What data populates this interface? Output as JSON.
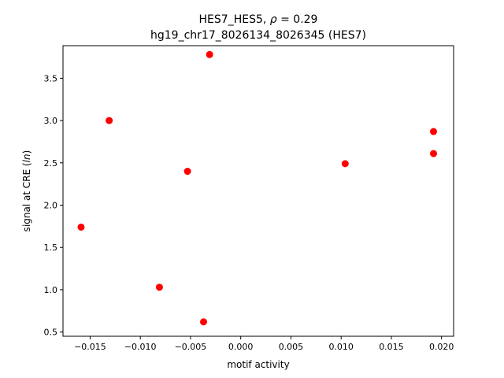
{
  "chart_data": {
    "type": "scatter",
    "title_line1_prefix": "HES7_HES5, ",
    "title_rho_symbol": "ρ",
    "title_rho_value": " = 0.29",
    "title_line2": "hg19_chr17_8026134_8026345 (HES7)",
    "xlabel": "motif activity",
    "ylabel_prefix": "signal at CRE (",
    "ylabel_italic": "ln",
    "ylabel_suffix": ")",
    "xlim": [
      -0.0177,
      0.0212
    ],
    "ylim": [
      0.45,
      3.885
    ],
    "x_ticks": [
      -0.015,
      -0.01,
      -0.005,
      0.0,
      0.005,
      0.01,
      0.015,
      0.02
    ],
    "x_tick_labels": [
      "−0.015",
      "−0.010",
      "−0.005",
      "0.000",
      "0.005",
      "0.010",
      "0.015",
      "0.020"
    ],
    "y_ticks": [
      0.5,
      1.0,
      1.5,
      2.0,
      2.5,
      3.0,
      3.5
    ],
    "y_tick_labels": [
      "0.5",
      "1.0",
      "1.5",
      "2.0",
      "2.5",
      "3.0",
      "3.5"
    ],
    "grid": false,
    "marker_color": "#ff0000",
    "points": [
      {
        "x": -0.0159,
        "y": 1.74
      },
      {
        "x": -0.0131,
        "y": 3.0
      },
      {
        "x": -0.0081,
        "y": 1.03
      },
      {
        "x": -0.0053,
        "y": 2.4
      },
      {
        "x": -0.0037,
        "y": 0.62
      },
      {
        "x": -0.0031,
        "y": 3.78
      },
      {
        "x": 0.0104,
        "y": 2.49
      },
      {
        "x": 0.0192,
        "y": 2.87
      },
      {
        "x": 0.0192,
        "y": 2.61
      }
    ]
  }
}
